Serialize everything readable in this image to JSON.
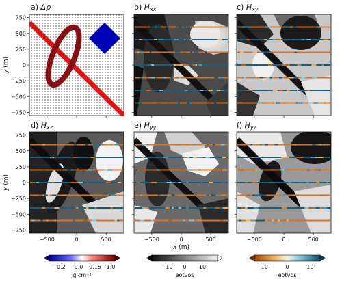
{
  "panels": [
    {
      "letter": "a)",
      "symbol": "Δρ",
      "sub": ""
    },
    {
      "letter": "b)",
      "symbol": "H",
      "sub": "xx"
    },
    {
      "letter": "c)",
      "symbol": "H",
      "sub": "xy"
    },
    {
      "letter": "d)",
      "symbol": "H",
      "sub": "xz"
    },
    {
      "letter": "e)",
      "symbol": "H",
      "sub": "yy"
    },
    {
      "letter": "f)",
      "symbol": "H",
      "sub": "yz"
    }
  ],
  "axes": {
    "xlabel_var": "x",
    "xlabel_unit": " (m)",
    "ylabel_var": "y",
    "ylabel_unit": " (m)",
    "xticks": [
      "−500",
      "0",
      "500"
    ],
    "yticks": [
      "750",
      "500",
      "250",
      "0",
      "−250",
      "−500",
      "−750"
    ]
  },
  "colorbars": [
    {
      "ticks": [
        "−0.2",
        "0.0",
        "0.15",
        "1.0"
      ],
      "label": "g cm⁻³"
    },
    {
      "ticks": [
        "−10",
        "0",
        "10"
      ],
      "label": "eotvos"
    },
    {
      "ticks": [
        "−10¹",
        "0",
        "10¹"
      ],
      "label": "eotvos"
    }
  ],
  "colors": {
    "density_positive": "#8b0f12",
    "density_high": "#e0120f",
    "density_negative": "#0000b8",
    "gray_dark": "#1a1a1a",
    "gray_light": "#e6e6e6",
    "div_low": "#c85a00",
    "div_high": "#0c5a78"
  }
}
